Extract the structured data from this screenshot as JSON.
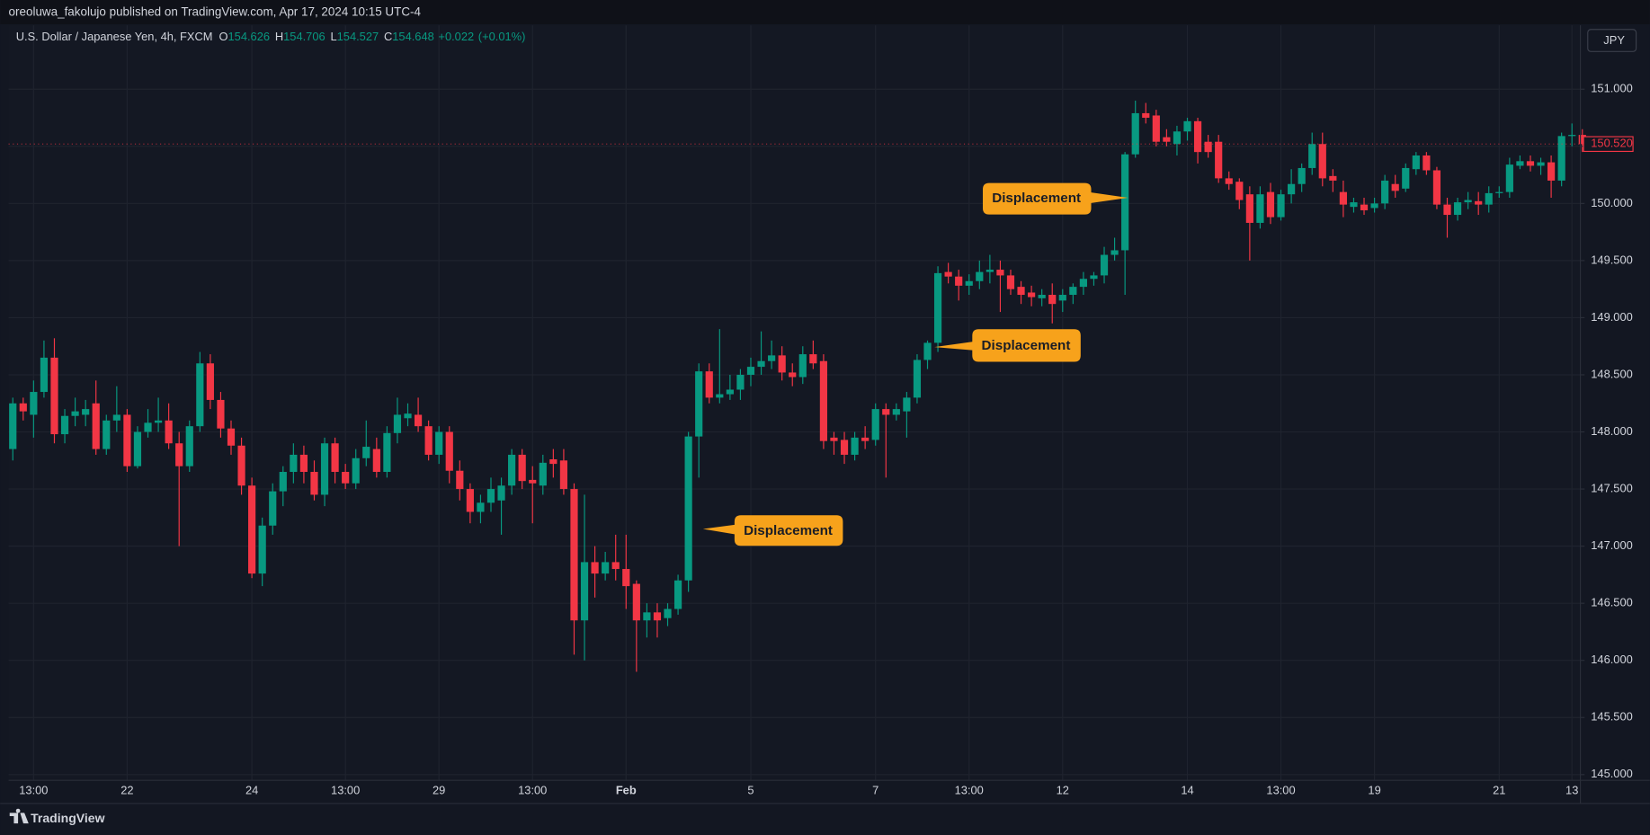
{
  "published": "oreoluwa_fakolujo published on TradingView.com, Apr 17, 2024 10:15 UTC-4",
  "currency": "JPY",
  "brand": "TradingView",
  "chart_data": {
    "type": "candlestick",
    "title": "U.S. Dollar / Japanese Yen, 4h, FXCM",
    "legend": [
      {
        "key": "O",
        "value": 154.626
      },
      {
        "key": "H",
        "value": 154.706
      },
      {
        "key": "L",
        "value": 154.527
      },
      {
        "key": "C",
        "value": 154.648
      }
    ],
    "change": {
      "value": 0.022,
      "label": "+0.022"
    },
    "change_pct": {
      "value": 0.01,
      "label": "(+0.01%)"
    },
    "up_color": "#089981",
    "down_color": "#f23645",
    "ylim": [
      144.95,
      151.56
    ],
    "yticks": [
      {
        "value": 145,
        "label": "145.000"
      },
      {
        "value": 145.5,
        "label": "145.500"
      },
      {
        "value": 146,
        "label": "146.000"
      },
      {
        "value": 146.5,
        "label": "146.500"
      },
      {
        "value": 147,
        "label": "147.000"
      },
      {
        "value": 147.5,
        "label": "147.500"
      },
      {
        "value": 148,
        "label": "148.000"
      },
      {
        "value": 148.5,
        "label": "148.500"
      },
      {
        "value": 149,
        "label": "149.000"
      },
      {
        "value": 149.5,
        "label": "149.500"
      },
      {
        "value": 150,
        "label": "150.000"
      },
      {
        "value": 150.5,
        "label": "150.500"
      },
      {
        "value": 151,
        "label": "151.000"
      }
    ],
    "xticks": [
      {
        "index": 2,
        "label": "13:00"
      },
      {
        "index": 11,
        "label": "22"
      },
      {
        "index": 23,
        "label": "24"
      },
      {
        "index": 32,
        "label": "13:00"
      },
      {
        "index": 41,
        "label": "29"
      },
      {
        "index": 50,
        "label": "13:00"
      },
      {
        "index": 59,
        "label": "Feb"
      },
      {
        "index": 71,
        "label": "5"
      },
      {
        "index": 83,
        "label": "7"
      },
      {
        "index": 92,
        "label": "13:00"
      },
      {
        "index": 101,
        "label": "12"
      },
      {
        "index": 113,
        "label": "14"
      },
      {
        "index": 122,
        "label": "13:00"
      },
      {
        "index": 131,
        "label": "19"
      },
      {
        "index": 143,
        "label": "21"
      },
      {
        "index": 150,
        "label": "13"
      }
    ],
    "grid": true,
    "last_price": {
      "value": 150.52,
      "label": "150.520"
    },
    "annotations": [
      "Displacement",
      "Displacement",
      "Displacement"
    ],
    "ohlc": [
      [
        147.85,
        148.3,
        147.75,
        148.25
      ],
      [
        148.25,
        148.3,
        148.1,
        148.18
      ],
      [
        148.15,
        148.45,
        147.95,
        148.35
      ],
      [
        148.35,
        148.8,
        148.3,
        148.65
      ],
      [
        148.65,
        148.82,
        147.9,
        147.98
      ],
      [
        147.98,
        148.2,
        147.9,
        148.14
      ],
      [
        148.14,
        148.3,
        148.05,
        148.18
      ],
      [
        148.15,
        148.28,
        148.05,
        148.2
      ],
      [
        148.25,
        148.45,
        147.8,
        147.85
      ],
      [
        147.85,
        148.15,
        147.8,
        148.1
      ],
      [
        148.1,
        148.4,
        148.0,
        148.15
      ],
      [
        148.15,
        148.2,
        147.65,
        147.7
      ],
      [
        147.7,
        148.05,
        147.68,
        148.0
      ],
      [
        148.0,
        148.2,
        147.95,
        148.08
      ],
      [
        148.08,
        148.3,
        148.0,
        148.1
      ],
      [
        148.1,
        148.25,
        147.85,
        147.9
      ],
      [
        147.9,
        148.0,
        147.0,
        147.7
      ],
      [
        147.7,
        148.1,
        147.65,
        148.05
      ],
      [
        148.05,
        148.7,
        148.0,
        148.6
      ],
      [
        148.6,
        148.68,
        148.2,
        148.28
      ],
      [
        148.28,
        148.35,
        147.95,
        148.03
      ],
      [
        148.03,
        148.1,
        147.8,
        147.88
      ],
      [
        147.88,
        147.95,
        147.45,
        147.53
      ],
      [
        147.53,
        147.6,
        146.72,
        146.76
      ],
      [
        146.76,
        147.25,
        146.65,
        147.18
      ],
      [
        147.18,
        147.55,
        147.1,
        147.48
      ],
      [
        147.48,
        147.7,
        147.35,
        147.65
      ],
      [
        147.65,
        147.9,
        147.55,
        147.8
      ],
      [
        147.8,
        147.88,
        147.55,
        147.65
      ],
      [
        147.65,
        147.75,
        147.4,
        147.45
      ],
      [
        147.45,
        147.95,
        147.35,
        147.9
      ],
      [
        147.9,
        147.95,
        147.55,
        147.65
      ],
      [
        147.65,
        147.72,
        147.5,
        147.55
      ],
      [
        147.55,
        147.85,
        147.5,
        147.77
      ],
      [
        147.77,
        148.1,
        147.7,
        147.87
      ],
      [
        147.85,
        147.95,
        147.6,
        147.65
      ],
      [
        147.65,
        148.05,
        147.6,
        147.99
      ],
      [
        147.99,
        148.3,
        147.9,
        148.15
      ],
      [
        148.12,
        148.25,
        148.05,
        148.16
      ],
      [
        148.15,
        148.3,
        148.0,
        148.05
      ],
      [
        148.05,
        148.1,
        147.75,
        147.8
      ],
      [
        147.8,
        148.05,
        147.72,
        148.0
      ],
      [
        148.0,
        148.05,
        147.55,
        147.66
      ],
      [
        147.66,
        147.75,
        147.4,
        147.5
      ],
      [
        147.5,
        147.55,
        147.2,
        147.3
      ],
      [
        147.3,
        147.45,
        147.2,
        147.38
      ],
      [
        147.38,
        147.6,
        147.3,
        147.5
      ],
      [
        147.4,
        147.6,
        147.1,
        147.53
      ],
      [
        147.53,
        147.85,
        147.45,
        147.8
      ],
      [
        147.8,
        147.85,
        147.5,
        147.57
      ],
      [
        147.58,
        147.7,
        147.2,
        147.55
      ],
      [
        147.53,
        147.8,
        147.45,
        147.73
      ],
      [
        147.76,
        147.85,
        147.6,
        147.72
      ],
      [
        147.75,
        147.85,
        147.45,
        147.5
      ],
      [
        147.5,
        147.55,
        146.05,
        146.35
      ],
      [
        146.35,
        147.45,
        146.0,
        146.86
      ],
      [
        146.86,
        147.0,
        146.55,
        146.76
      ],
      [
        146.76,
        146.95,
        146.7,
        146.86
      ],
      [
        146.86,
        147.1,
        146.7,
        146.8
      ],
      [
        146.8,
        147.1,
        146.45,
        146.65
      ],
      [
        146.67,
        146.7,
        145.9,
        146.35
      ],
      [
        146.35,
        146.5,
        146.2,
        146.42
      ],
      [
        146.42,
        146.5,
        146.2,
        146.35
      ],
      [
        146.37,
        146.5,
        146.3,
        146.45
      ],
      [
        146.45,
        146.75,
        146.4,
        146.7
      ],
      [
        146.7,
        148.0,
        146.6,
        147.96
      ],
      [
        147.96,
        148.6,
        147.6,
        148.53
      ],
      [
        148.53,
        148.6,
        148.25,
        148.3
      ],
      [
        148.3,
        148.9,
        148.25,
        148.33
      ],
      [
        148.33,
        148.5,
        148.28,
        148.37
      ],
      [
        148.37,
        148.55,
        148.28,
        148.5
      ],
      [
        148.5,
        148.65,
        148.4,
        148.57
      ],
      [
        148.57,
        148.88,
        148.5,
        148.62
      ],
      [
        148.62,
        148.8,
        148.55,
        148.67
      ],
      [
        148.67,
        148.75,
        148.45,
        148.52
      ],
      [
        148.52,
        148.6,
        148.4,
        148.48
      ],
      [
        148.48,
        148.75,
        148.42,
        148.68
      ],
      [
        148.68,
        148.8,
        148.55,
        148.6
      ],
      [
        148.62,
        148.68,
        147.85,
        147.92
      ],
      [
        147.95,
        148.0,
        147.8,
        147.92
      ],
      [
        147.93,
        148.0,
        147.72,
        147.8
      ],
      [
        147.8,
        148.0,
        147.75,
        147.95
      ],
      [
        147.95,
        148.05,
        147.85,
        147.92
      ],
      [
        147.93,
        148.25,
        147.88,
        148.2
      ],
      [
        148.2,
        148.25,
        147.6,
        148.15
      ],
      [
        148.15,
        148.25,
        148.1,
        148.2
      ],
      [
        148.18,
        148.35,
        147.95,
        148.3
      ],
      [
        148.3,
        148.68,
        148.25,
        148.63
      ],
      [
        148.63,
        148.8,
        148.55,
        148.78
      ],
      [
        148.78,
        149.45,
        148.7,
        149.39
      ],
      [
        149.4,
        149.48,
        149.3,
        149.36
      ],
      [
        149.36,
        149.42,
        149.15,
        149.28
      ],
      [
        149.28,
        149.38,
        149.2,
        149.32
      ],
      [
        149.32,
        149.5,
        149.25,
        149.4
      ],
      [
        149.4,
        149.55,
        149.3,
        149.42
      ],
      [
        149.42,
        149.5,
        149.05,
        149.37
      ],
      [
        149.37,
        149.42,
        149.2,
        149.25
      ],
      [
        149.27,
        149.32,
        149.12,
        149.2
      ],
      [
        149.22,
        149.28,
        149.1,
        149.18
      ],
      [
        149.17,
        149.25,
        149.1,
        149.2
      ],
      [
        149.2,
        149.3,
        148.95,
        149.12
      ],
      [
        149.15,
        149.25,
        149.05,
        149.2
      ],
      [
        149.2,
        149.3,
        149.12,
        149.27
      ],
      [
        149.27,
        149.4,
        149.2,
        149.34
      ],
      [
        149.34,
        149.4,
        149.28,
        149.37
      ],
      [
        149.37,
        149.62,
        149.3,
        149.55
      ],
      [
        149.55,
        149.7,
        149.5,
        149.59
      ],
      [
        149.59,
        150.45,
        149.2,
        150.43
      ],
      [
        150.43,
        150.9,
        150.4,
        150.79
      ],
      [
        150.79,
        150.88,
        150.7,
        150.75
      ],
      [
        150.77,
        150.82,
        150.5,
        150.54
      ],
      [
        150.58,
        150.65,
        150.5,
        150.54
      ],
      [
        150.52,
        150.68,
        150.42,
        150.63
      ],
      [
        150.63,
        150.75,
        150.55,
        150.72
      ],
      [
        150.72,
        150.75,
        150.35,
        150.45
      ],
      [
        150.54,
        150.6,
        150.4,
        150.45
      ],
      [
        150.54,
        150.6,
        150.18,
        150.22
      ],
      [
        150.22,
        150.28,
        150.12,
        150.17
      ],
      [
        150.19,
        150.22,
        149.95,
        150.03
      ],
      [
        150.08,
        150.15,
        149.5,
        149.83
      ],
      [
        149.83,
        150.15,
        149.78,
        150.08
      ],
      [
        150.1,
        150.18,
        149.82,
        149.88
      ],
      [
        149.88,
        150.12,
        149.85,
        150.08
      ],
      [
        150.08,
        150.3,
        150.0,
        150.17
      ],
      [
        150.17,
        150.35,
        150.1,
        150.31
      ],
      [
        150.31,
        150.62,
        150.25,
        150.52
      ],
      [
        150.52,
        150.62,
        150.15,
        150.22
      ],
      [
        150.24,
        150.3,
        150.1,
        150.2
      ],
      [
        150.1,
        150.2,
        149.88,
        149.99
      ],
      [
        149.97,
        150.05,
        149.92,
        150.01
      ],
      [
        149.99,
        150.05,
        149.9,
        149.94
      ],
      [
        149.96,
        150.05,
        149.92,
        150.0
      ],
      [
        150.0,
        150.25,
        149.95,
        150.2
      ],
      [
        150.17,
        150.25,
        150.05,
        150.11
      ],
      [
        150.13,
        150.35,
        150.1,
        150.31
      ],
      [
        150.3,
        150.45,
        150.25,
        150.42
      ],
      [
        150.42,
        150.45,
        150.25,
        150.29
      ],
      [
        150.29,
        150.32,
        149.95,
        149.99
      ],
      [
        149.99,
        150.05,
        149.7,
        149.9
      ],
      [
        149.9,
        150.05,
        149.85,
        150.01
      ],
      [
        150.01,
        150.1,
        149.95,
        150.03
      ],
      [
        150.02,
        150.1,
        149.9,
        149.99
      ],
      [
        149.99,
        150.15,
        149.92,
        150.09
      ],
      [
        150.09,
        150.15,
        150.05,
        150.1
      ],
      [
        150.1,
        150.4,
        150.05,
        150.34
      ],
      [
        150.33,
        150.42,
        150.3,
        150.37
      ],
      [
        150.37,
        150.42,
        150.28,
        150.33
      ],
      [
        150.33,
        150.4,
        150.25,
        150.36
      ],
      [
        150.36,
        150.42,
        150.05,
        150.2
      ],
      [
        150.2,
        150.62,
        150.15,
        150.59
      ],
      [
        150.59,
        150.7,
        150.5,
        150.6
      ],
      [
        150.6,
        150.65,
        150.45,
        150.52
      ]
    ]
  }
}
